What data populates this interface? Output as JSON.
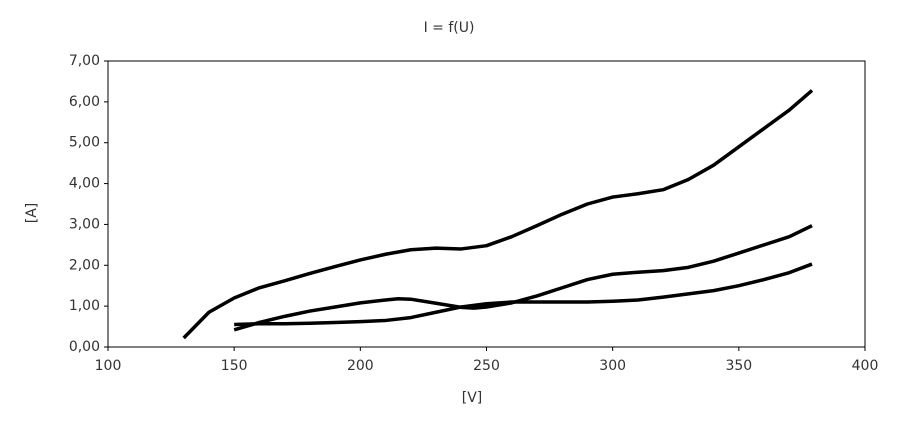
{
  "chart_data": {
    "type": "line",
    "title": "I = f(U)",
    "x_label": "[V]",
    "y_label": "[A]",
    "xlim": [
      100,
      400
    ],
    "xticks": [
      100,
      150,
      200,
      250,
      300,
      350,
      400
    ],
    "ylim": [
      0,
      7
    ],
    "yticks": [
      {
        "value": 0,
        "label": "0,00"
      },
      {
        "value": 1,
        "label": "1,00"
      },
      {
        "value": 2,
        "label": "2,00"
      },
      {
        "value": 3,
        "label": "3,00"
      },
      {
        "value": 4,
        "label": "4,00"
      },
      {
        "value": 5,
        "label": "5,00"
      },
      {
        "value": 6,
        "label": "6,00"
      },
      {
        "value": 7,
        "label": "7,00"
      }
    ],
    "grid": false,
    "series": [
      {
        "color": "#000000",
        "x": [
          130,
          140,
          150,
          160,
          170,
          180,
          190,
          200,
          210,
          220,
          230,
          240,
          250,
          260,
          270,
          280,
          290,
          300,
          310,
          320,
          330,
          340,
          350,
          360,
          370,
          379
        ],
        "values": [
          0.22,
          0.85,
          1.2,
          1.45,
          1.62,
          1.8,
          1.97,
          2.13,
          2.27,
          2.38,
          2.42,
          2.4,
          2.48,
          2.7,
          2.97,
          3.25,
          3.5,
          3.67,
          3.75,
          3.85,
          4.1,
          4.45,
          4.9,
          5.35,
          5.8,
          6.28
        ]
      },
      {
        "color": "#000000",
        "x": [
          150,
          160,
          170,
          180,
          190,
          200,
          210,
          215,
          220,
          230,
          240,
          245,
          250,
          260,
          270,
          280,
          290,
          300,
          310,
          320,
          330,
          340,
          350,
          360,
          370,
          379
        ],
        "values": [
          0.42,
          0.6,
          0.75,
          0.88,
          0.98,
          1.08,
          1.15,
          1.18,
          1.17,
          1.07,
          0.97,
          0.95,
          0.98,
          1.08,
          1.25,
          1.45,
          1.65,
          1.78,
          1.83,
          1.87,
          1.95,
          2.1,
          2.3,
          2.5,
          2.7,
          2.97
        ]
      },
      {
        "color": "#000000",
        "x": [
          150,
          160,
          170,
          180,
          190,
          200,
          210,
          220,
          230,
          240,
          250,
          260,
          270,
          280,
          290,
          300,
          310,
          320,
          330,
          340,
          350,
          360,
          370,
          379
        ],
        "values": [
          0.55,
          0.57,
          0.57,
          0.58,
          0.6,
          0.62,
          0.65,
          0.72,
          0.85,
          0.98,
          1.06,
          1.1,
          1.1,
          1.1,
          1.1,
          1.12,
          1.15,
          1.22,
          1.3,
          1.38,
          1.5,
          1.65,
          1.82,
          2.03
        ]
      }
    ]
  }
}
